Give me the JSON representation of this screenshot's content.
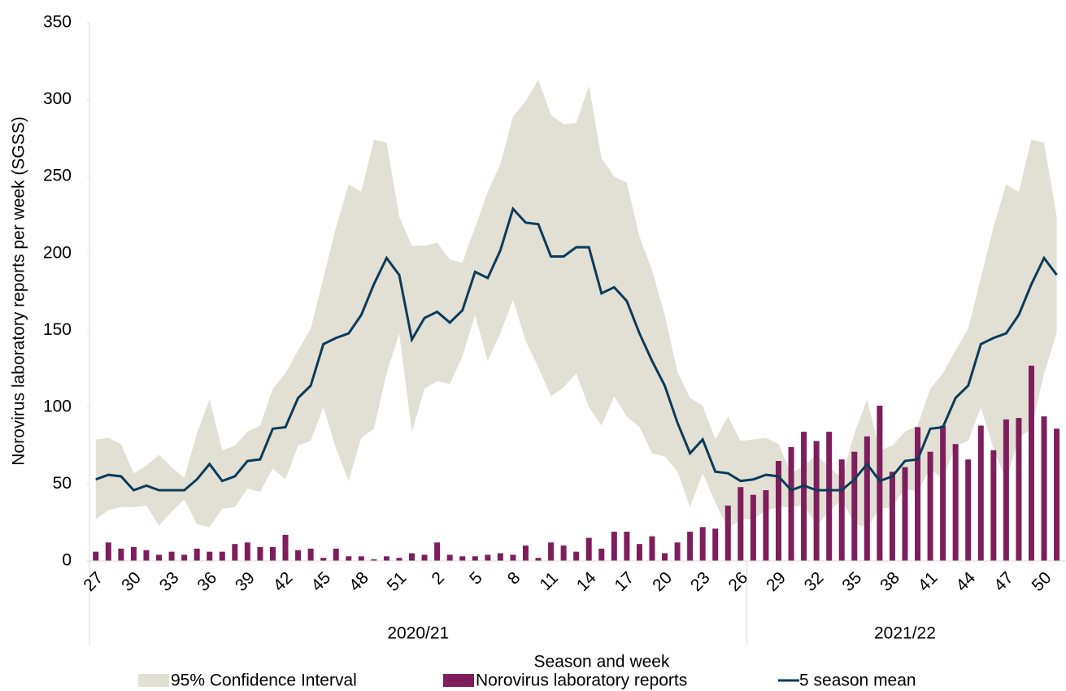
{
  "chart_data": {
    "type": "bar-line-band",
    "y_label": "Norovirus laboratory reports per week (SGSS)",
    "x_label": "Season and week",
    "ylim": [
      0,
      350
    ],
    "yticks": [
      0,
      50,
      100,
      150,
      200,
      250,
      300,
      350
    ],
    "categories": [
      "27",
      null,
      null,
      "30",
      null,
      null,
      "33",
      null,
      null,
      "36",
      null,
      null,
      "39",
      null,
      null,
      "42",
      null,
      null,
      "45",
      null,
      null,
      "48",
      null,
      null,
      "51",
      null,
      null,
      "2",
      null,
      null,
      "5",
      null,
      null,
      "8",
      null,
      null,
      "11",
      null,
      null,
      "14",
      null,
      null,
      "17",
      null,
      null,
      "20",
      null,
      null,
      "23",
      null,
      null,
      "26",
      null,
      null,
      "29",
      null,
      null,
      "32",
      null,
      null,
      "35",
      null,
      null,
      "38",
      null,
      null,
      "41",
      null,
      null,
      "44",
      null,
      null,
      "47",
      null,
      null,
      "50",
      null
    ],
    "groups": [
      {
        "name": "2020/21",
        "size": 52
      },
      {
        "name": "2021/22",
        "size": 25
      }
    ],
    "series": [
      {
        "name": "95% Confidence Interval",
        "kind": "band",
        "color": "#e2e0d4",
        "upper": [
          79,
          80,
          76,
          57,
          62,
          69,
          61,
          54,
          83,
          105,
          72,
          75,
          84,
          88,
          112,
          122,
          137,
          151,
          184,
          217,
          245,
          240,
          274,
          272,
          224,
          205,
          205,
          207,
          196,
          194,
          217,
          240,
          258,
          289,
          299,
          313,
          290,
          284,
          285,
          309,
          262,
          250,
          246,
          211,
          189,
          160,
          123,
          106,
          101,
          79,
          94,
          78,
          79,
          80,
          76,
          57,
          62,
          69,
          61,
          54,
          83,
          105,
          72,
          75,
          84,
          88,
          112,
          122,
          137,
          151,
          184,
          217,
          245,
          240,
          274,
          272,
          224
        ],
        "lower": [
          27,
          33,
          35,
          35,
          36,
          23,
          32,
          40,
          24,
          22,
          34,
          35,
          47,
          45,
          60,
          53,
          75,
          78,
          100,
          73,
          52,
          80,
          86,
          122,
          148,
          84,
          112,
          117,
          115,
          133,
          160,
          130,
          148,
          170,
          143,
          126,
          107,
          113,
          122,
          100,
          88,
          107,
          94,
          87,
          70,
          68,
          58,
          35,
          57,
          38,
          21,
          27,
          27,
          33,
          35,
          35,
          36,
          23,
          32,
          40,
          24,
          22,
          34,
          35,
          47,
          45,
          60,
          53,
          75,
          78,
          100,
          73,
          52,
          80,
          86,
          122,
          148
        ]
      },
      {
        "name": "Norovirus laboratory reports",
        "kind": "bar",
        "color": "#7e1e5d",
        "values": [
          6,
          12,
          8,
          9,
          7,
          4,
          6,
          4,
          8,
          6,
          6,
          11,
          12,
          9,
          9,
          17,
          7,
          8,
          2,
          8,
          3,
          3,
          1,
          3,
          2,
          5,
          4,
          12,
          4,
          3,
          3,
          4,
          5,
          4,
          10,
          2,
          12,
          10,
          6,
          15,
          8,
          19,
          19,
          11,
          16,
          5,
          12,
          19,
          22,
          21,
          36,
          48,
          43,
          46,
          65,
          74,
          84,
          78,
          84,
          66,
          71,
          81,
          101,
          58,
          61,
          87,
          71,
          88,
          76,
          66,
          88,
          72,
          92,
          93,
          127,
          94,
          86
        ]
      },
      {
        "name": "5 season mean",
        "kind": "line",
        "color": "#0c3b5a",
        "values": [
          53,
          56,
          55,
          46,
          49,
          46,
          46,
          46,
          53,
          63,
          52,
          55,
          65,
          66,
          86,
          87,
          106,
          114,
          141,
          145,
          148,
          160,
          180,
          197,
          186,
          144,
          158,
          162,
          155,
          163,
          188,
          184,
          202,
          229,
          220,
          219,
          198,
          198,
          204,
          204,
          174,
          178,
          169,
          148,
          130,
          114,
          90,
          70,
          79,
          58,
          57,
          52,
          53,
          56,
          55,
          46,
          49,
          46,
          46,
          46,
          53,
          63,
          52,
          55,
          65,
          66,
          86,
          87,
          106,
          114,
          141,
          145,
          148,
          160,
          180,
          197,
          186
        ]
      }
    ]
  }
}
